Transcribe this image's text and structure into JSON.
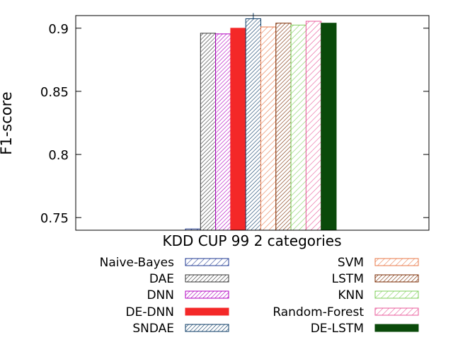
{
  "chart_data": {
    "type": "bar",
    "categories": [
      "KDD CUP 99 2 categories"
    ],
    "xlabel": "KDD CUP 99 2 categories",
    "ylabel": "F1-score",
    "ylim": [
      0.74,
      0.91
    ],
    "yticks": [
      0.75,
      0.8,
      0.85,
      0.9
    ],
    "ytick_labels": [
      "0.75",
      "0.8",
      "0.85",
      "0.9"
    ],
    "grid": false,
    "legend_position": "bottom",
    "series": [
      {
        "name": "Naive-Bayes",
        "values": [
          0.741
        ],
        "color": "#1f3a93",
        "pattern": "hatch-light"
      },
      {
        "name": "DAE",
        "values": [
          0.896
        ],
        "color": "#333333",
        "pattern": "hatch-dense"
      },
      {
        "name": "DNN",
        "values": [
          0.8955
        ],
        "color": "#b000c0",
        "pattern": "hatch-dense"
      },
      {
        "name": "DE-DNN",
        "values": [
          0.9
        ],
        "color": "#f42828",
        "pattern": "solid"
      },
      {
        "name": "SNDAE",
        "values": [
          0.9075
        ],
        "color": "#0b3b66",
        "pattern": "hatch-dense"
      },
      {
        "name": "SVM",
        "values": [
          0.901
        ],
        "color": "#e8794a",
        "pattern": "hatch-light"
      },
      {
        "name": "LSTM",
        "values": [
          0.904
        ],
        "color": "#7a2a00",
        "pattern": "hatch-dense"
      },
      {
        "name": "KNN",
        "values": [
          0.9025
        ],
        "color": "#7fcf5a",
        "pattern": "hatch-light"
      },
      {
        "name": "Random-Forest",
        "values": [
          0.9055
        ],
        "color": "#e85a9a",
        "pattern": "hatch-light"
      },
      {
        "name": "DE-LSTM",
        "values": [
          0.904
        ],
        "color": "#0a4a0a",
        "pattern": "solid"
      }
    ],
    "error_bar_series": "SNDAE"
  }
}
